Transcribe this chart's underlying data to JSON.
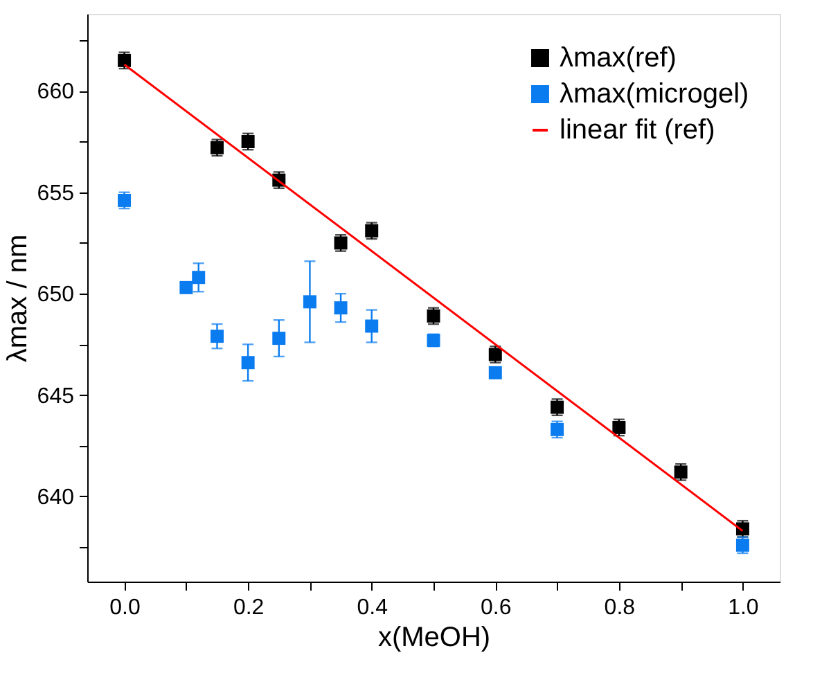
{
  "chart_data": {
    "type": "scatter",
    "xlabel": "x(MeOH)",
    "ylabel": "λmax / nm",
    "xlim": [
      -0.06,
      1.06
    ],
    "ylim": [
      635.8,
      663.8
    ],
    "xticks": [
      {
        "value": 0,
        "label": "0.0"
      },
      {
        "value": 0.1,
        "label": null
      },
      {
        "value": 0.2,
        "label": "0.2"
      },
      {
        "value": 0.3,
        "label": null
      },
      {
        "value": 0.4,
        "label": "0.4"
      },
      {
        "value": 0.5,
        "label": null
      },
      {
        "value": 0.6,
        "label": "0.6"
      },
      {
        "value": 0.7,
        "label": null
      },
      {
        "value": 0.8,
        "label": "0.8"
      },
      {
        "value": 0.9,
        "label": null
      },
      {
        "value": 1,
        "label": "1.0"
      }
    ],
    "yticks": [
      {
        "value": 637.5,
        "label": null
      },
      640,
      {
        "value": 642.5,
        "label": null
      },
      645,
      {
        "value": 647.5,
        "label": null
      },
      650,
      {
        "value": 652.5,
        "label": null
      },
      655,
      {
        "value": 657.5,
        "label": null
      },
      660,
      {
        "value": 662.5,
        "label": null
      }
    ],
    "grid": false,
    "legend": "top right",
    "marker": "square",
    "series": [
      {
        "name": "λmax(ref)",
        "color": "#000000",
        "x": [
          0,
          0.15,
          0.2,
          0.25,
          0.35,
          0.4,
          0.5,
          0.6,
          0.7,
          0.8,
          0.9,
          1.0
        ],
        "values": [
          661.5,
          657.2,
          657.5,
          655.6,
          652.5,
          653.1,
          648.9,
          647.0,
          644.4,
          643.4,
          641.2,
          638.4
        ],
        "errors": [
          0.4,
          0.4,
          0.4,
          0.4,
          0.4,
          0.4,
          0.4,
          0.4,
          0.4,
          0.4,
          0.4,
          0.4
        ]
      },
      {
        "name": "λmax(microgel)",
        "color": "#0a7cf0",
        "x": [
          0,
          0.1,
          0.12,
          0.15,
          0.2,
          0.25,
          0.3,
          0.35,
          0.4,
          0.5,
          0.6,
          0.7,
          1.0
        ],
        "values": [
          654.6,
          650.3,
          650.8,
          647.9,
          646.6,
          647.8,
          649.6,
          649.3,
          648.4,
          647.7,
          646.1,
          643.3,
          637.6
        ],
        "errors": [
          0.4,
          null,
          0.7,
          0.6,
          0.9,
          0.9,
          2.0,
          0.7,
          0.8,
          0.3,
          null,
          0.4,
          0.4
        ]
      },
      {
        "name": "linear fit (ref)",
        "type": "line",
        "line_style": "solid",
        "marker": "none",
        "color": "#ff0000",
        "x": [
          0,
          1.0
        ],
        "values": [
          661.3,
          638.3
        ]
      }
    ]
  }
}
